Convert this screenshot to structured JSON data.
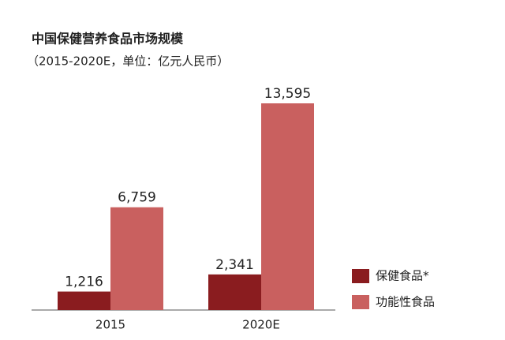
{
  "chart_data": {
    "type": "bar",
    "title": "中国保健营养食品市场规模",
    "subtitle": "（2015-2020E，单位：亿元人民币）",
    "categories": [
      "2015",
      "2020E"
    ],
    "series": [
      {
        "name": "保健食品*",
        "color": "#8a1c1f",
        "values": [
          1216,
          2341
        ],
        "value_labels": [
          "1,216",
          "2,341"
        ]
      },
      {
        "name": "功能性食品",
        "color": "#c9605f",
        "values": [
          6759,
          13595
        ],
        "value_labels": [
          "6,759",
          "13,595"
        ]
      }
    ],
    "legend": "right"
  }
}
